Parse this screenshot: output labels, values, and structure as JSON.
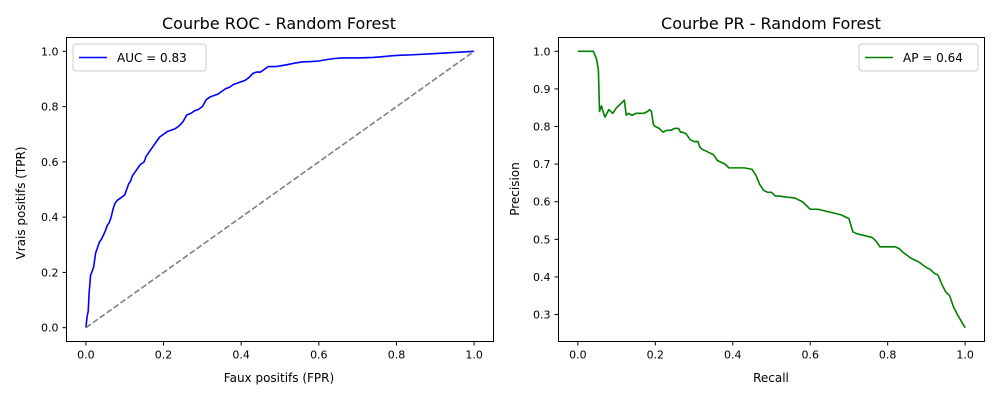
{
  "chart_data": [
    {
      "type": "line",
      "title": "Courbe ROC - Random Forest",
      "xlabel": "Faux positifs (FPR)",
      "ylabel": "Vrais positifs (TPR)",
      "xlim": [
        -0.05,
        1.05
      ],
      "ylim": [
        -0.05,
        1.05
      ],
      "xticks": [
        0.0,
        0.2,
        0.4,
        0.6,
        0.8,
        1.0
      ],
      "yticks": [
        0.0,
        0.2,
        0.4,
        0.6,
        0.8,
        1.0
      ],
      "xtick_labels": [
        "0.0",
        "0.2",
        "0.4",
        "0.6",
        "0.8",
        "1.0"
      ],
      "ytick_labels": [
        "0.0",
        "0.2",
        "0.4",
        "0.6",
        "0.8",
        "1.0"
      ],
      "grid": false,
      "legend": "upper-left",
      "series": [
        {
          "name": "AUC = 0.83",
          "color": "#0000ff",
          "style": "solid",
          "x": [
            0.0,
            0.003,
            0.006,
            0.008,
            0.012,
            0.015,
            0.02,
            0.025,
            0.03,
            0.035,
            0.04,
            0.05,
            0.055,
            0.06,
            0.065,
            0.07,
            0.075,
            0.08,
            0.09,
            0.1,
            0.105,
            0.11,
            0.115,
            0.12,
            0.13,
            0.14,
            0.15,
            0.155,
            0.16,
            0.17,
            0.18,
            0.19,
            0.2,
            0.21,
            0.22,
            0.23,
            0.24,
            0.25,
            0.26,
            0.27,
            0.28,
            0.29,
            0.3,
            0.31,
            0.32,
            0.33,
            0.34,
            0.35,
            0.36,
            0.37,
            0.38,
            0.39,
            0.4,
            0.41,
            0.42,
            0.43,
            0.44,
            0.45,
            0.46,
            0.47,
            0.48,
            0.49,
            0.5,
            0.52,
            0.54,
            0.56,
            0.58,
            0.6,
            0.62,
            0.64,
            0.66,
            0.68,
            0.7,
            0.72,
            0.74,
            0.76,
            0.78,
            0.8,
            0.85,
            0.9,
            0.95,
            1.0
          ],
          "y": [
            0.0,
            0.04,
            0.06,
            0.12,
            0.19,
            0.2,
            0.22,
            0.27,
            0.29,
            0.31,
            0.32,
            0.35,
            0.37,
            0.38,
            0.4,
            0.43,
            0.45,
            0.46,
            0.47,
            0.48,
            0.5,
            0.52,
            0.53,
            0.55,
            0.57,
            0.59,
            0.6,
            0.62,
            0.63,
            0.65,
            0.67,
            0.69,
            0.7,
            0.71,
            0.715,
            0.72,
            0.73,
            0.745,
            0.77,
            0.775,
            0.785,
            0.79,
            0.8,
            0.825,
            0.835,
            0.84,
            0.845,
            0.855,
            0.865,
            0.87,
            0.88,
            0.885,
            0.89,
            0.895,
            0.905,
            0.92,
            0.925,
            0.925,
            0.935,
            0.945,
            0.945,
            0.945,
            0.947,
            0.952,
            0.958,
            0.962,
            0.963,
            0.965,
            0.97,
            0.974,
            0.976,
            0.976,
            0.976,
            0.977,
            0.978,
            0.98,
            0.983,
            0.985,
            0.988,
            0.992,
            0.996,
            1.0
          ]
        },
        {
          "name": "",
          "color": "#808080",
          "style": "dashed",
          "x": [
            0.0,
            1.0
          ],
          "y": [
            0.0,
            1.0
          ]
        }
      ]
    },
    {
      "type": "line",
      "title": "Courbe PR - Random Forest",
      "xlabel": "Recall",
      "ylabel": "Precision",
      "xlim": [
        -0.05,
        1.05
      ],
      "ylim": [
        0.2283,
        1.0367
      ],
      "xticks": [
        0.0,
        0.2,
        0.4,
        0.6,
        0.8,
        1.0
      ],
      "yticks": [
        0.3,
        0.4,
        0.5,
        0.6,
        0.7,
        0.8,
        0.9,
        1.0
      ],
      "xtick_labels": [
        "0.0",
        "0.2",
        "0.4",
        "0.6",
        "0.8",
        "1.0"
      ],
      "ytick_labels": [
        "0.3",
        "0.4",
        "0.5",
        "0.6",
        "0.7",
        "0.8",
        "0.9",
        "1.0"
      ],
      "grid": false,
      "legend": "upper-right",
      "series": [
        {
          "name": "AP = 0.64",
          "color": "#008000",
          "style": "solid",
          "x": [
            0.0,
            0.04,
            0.048,
            0.053,
            0.056,
            0.061,
            0.065,
            0.07,
            0.08,
            0.09,
            0.1,
            0.12,
            0.125,
            0.13,
            0.14,
            0.15,
            0.16,
            0.17,
            0.18,
            0.185,
            0.19,
            0.195,
            0.2,
            0.21,
            0.22,
            0.23,
            0.24,
            0.25,
            0.26,
            0.265,
            0.27,
            0.28,
            0.29,
            0.3,
            0.31,
            0.315,
            0.32,
            0.33,
            0.34,
            0.35,
            0.36,
            0.37,
            0.38,
            0.39,
            0.4,
            0.41,
            0.42,
            0.43,
            0.44,
            0.45,
            0.46,
            0.47,
            0.48,
            0.49,
            0.5,
            0.51,
            0.52,
            0.54,
            0.56,
            0.58,
            0.6,
            0.62,
            0.64,
            0.66,
            0.68,
            0.7,
            0.71,
            0.72,
            0.74,
            0.76,
            0.77,
            0.78,
            0.8,
            0.82,
            0.83,
            0.84,
            0.86,
            0.88,
            0.9,
            0.91,
            0.92,
            0.93,
            0.94,
            0.95,
            0.96,
            0.97,
            0.98,
            1.0
          ],
          "y": [
            1.0,
            1.0,
            0.98,
            0.95,
            0.84,
            0.855,
            0.84,
            0.825,
            0.845,
            0.835,
            0.85,
            0.87,
            0.83,
            0.835,
            0.83,
            0.835,
            0.835,
            0.835,
            0.84,
            0.845,
            0.84,
            0.805,
            0.8,
            0.795,
            0.785,
            0.79,
            0.79,
            0.795,
            0.795,
            0.785,
            0.785,
            0.78,
            0.765,
            0.76,
            0.76,
            0.745,
            0.74,
            0.735,
            0.73,
            0.725,
            0.71,
            0.705,
            0.7,
            0.69,
            0.69,
            0.69,
            0.69,
            0.69,
            0.688,
            0.686,
            0.67,
            0.645,
            0.63,
            0.625,
            0.625,
            0.615,
            0.615,
            0.612,
            0.61,
            0.6,
            0.58,
            0.58,
            0.575,
            0.57,
            0.565,
            0.555,
            0.52,
            0.515,
            0.51,
            0.505,
            0.495,
            0.48,
            0.48,
            0.48,
            0.475,
            0.465,
            0.45,
            0.44,
            0.425,
            0.42,
            0.41,
            0.405,
            0.38,
            0.36,
            0.35,
            0.32,
            0.3,
            0.265
          ]
        }
      ]
    }
  ]
}
